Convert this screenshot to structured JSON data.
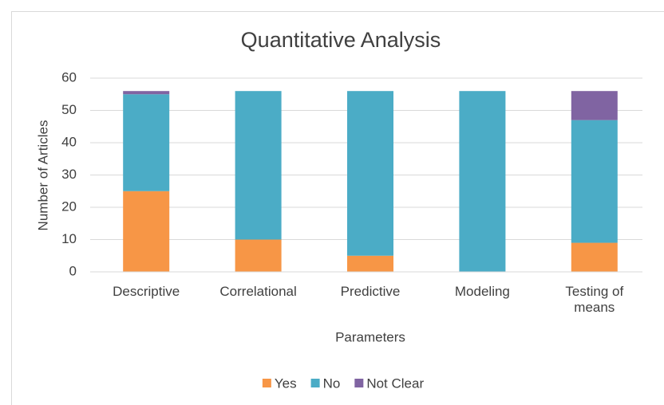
{
  "chart_data": {
    "type": "stacked_bar",
    "title": "Quantitative Analysis",
    "x_label": "Parameters",
    "y_label": "Number of Articles",
    "categories": [
      "Descriptive",
      "Correlational",
      "Predictive",
      "Modeling",
      "Testing of means"
    ],
    "series": [
      {
        "name": "Yes",
        "color": "#f79646",
        "values": [
          25,
          10,
          5,
          0,
          9
        ]
      },
      {
        "name": "No",
        "color": "#4bacc6",
        "values": [
          30,
          46,
          51,
          56,
          38
        ]
      },
      {
        "name": "Not Clear",
        "color": "#8064a2",
        "values": [
          1,
          0,
          0,
          0,
          9
        ]
      }
    ],
    "ylim": [
      0,
      60
    ],
    "yticks": [
      0,
      10,
      20,
      30,
      40,
      50,
      60
    ],
    "grid": true,
    "legend": "bottom"
  }
}
